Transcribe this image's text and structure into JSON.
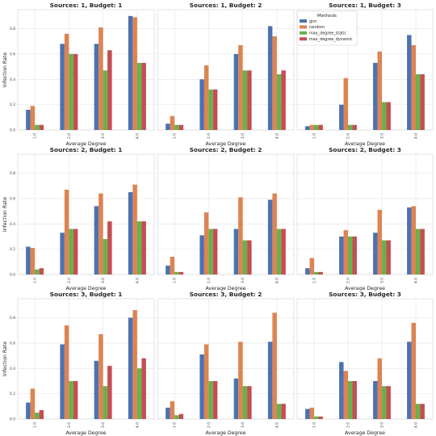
{
  "figure": {
    "legend": {
      "title": "Methods",
      "placement": "top-left of third panel"
    }
  },
  "chart_data": {
    "type": "bar",
    "grid": true,
    "categories": [
      "1.0",
      "2.0",
      "3.0",
      "4.0"
    ],
    "series_meta": [
      {
        "name": "gnn",
        "color": "#4c72b0"
      },
      {
        "name": "random",
        "color": "#dd8452"
      },
      {
        "name": "max_degree_static",
        "color": "#6ab04c"
      },
      {
        "name": "max_degree_dynamic",
        "color": "#c44e52"
      }
    ],
    "ylim": [
      0,
      0.95
    ],
    "y_ticks": [
      0.0,
      0.2,
      0.4,
      0.6,
      0.8
    ],
    "panels": [
      {
        "title": "Sources: 1, Budget: 1",
        "xlabel": "Average Degree",
        "ylabel": "Infection Rate",
        "y_tick_labels": [
          "0.0",
          "0.2",
          "0.4",
          "0.6",
          "0.8"
        ],
        "series": [
          {
            "name": "gnn",
            "values": [
              0.16,
              0.68,
              0.68,
              0.9
            ]
          },
          {
            "name": "random",
            "values": [
              0.19,
              0.76,
              0.81,
              0.89
            ]
          },
          {
            "name": "max_degree_static",
            "values": [
              0.04,
              0.6,
              0.47,
              0.53
            ]
          },
          {
            "name": "max_degree_dynamic",
            "values": [
              0.04,
              0.6,
              0.63,
              0.53
            ]
          }
        ]
      },
      {
        "title": "Sources: 1, Budget: 2",
        "xlabel": "Average Degree",
        "ylabel": "",
        "y_tick_labels": [],
        "series": [
          {
            "name": "gnn",
            "values": [
              0.05,
              0.4,
              0.6,
              0.82
            ]
          },
          {
            "name": "random",
            "values": [
              0.11,
              0.51,
              0.67,
              0.74
            ]
          },
          {
            "name": "max_degree_static",
            "values": [
              0.04,
              0.32,
              0.47,
              0.44
            ]
          },
          {
            "name": "max_degree_dynamic",
            "values": [
              0.04,
              0.32,
              0.47,
              0.47
            ]
          }
        ]
      },
      {
        "title": "Sources: 1, Budget: 3",
        "xlabel": "Average Degree",
        "ylabel": "",
        "y_tick_labels": [],
        "series": [
          {
            "name": "gnn",
            "values": [
              0.03,
              0.2,
              0.53,
              0.75
            ]
          },
          {
            "name": "random",
            "values": [
              0.04,
              0.41,
              0.62,
              0.67
            ]
          },
          {
            "name": "max_degree_static",
            "values": [
              0.04,
              0.04,
              0.22,
              0.44
            ]
          },
          {
            "name": "max_degree_dynamic",
            "values": [
              0.04,
              0.04,
              0.22,
              0.44
            ]
          }
        ]
      },
      {
        "title": "Sources: 2, Budget: 1",
        "xlabel": "Average Degree",
        "ylabel": "Infection Rate",
        "y_tick_labels": [
          "0.0",
          "0.2",
          "0.4",
          "0.6",
          "0.8"
        ],
        "series": [
          {
            "name": "gnn",
            "values": [
              0.22,
              0.33,
              0.54,
              0.65
            ]
          },
          {
            "name": "random",
            "values": [
              0.21,
              0.67,
              0.64,
              0.71
            ]
          },
          {
            "name": "max_degree_static",
            "values": [
              0.04,
              0.36,
              0.28,
              0.42
            ]
          },
          {
            "name": "max_degree_dynamic",
            "values": [
              0.05,
              0.36,
              0.42,
              0.42
            ]
          }
        ]
      },
      {
        "title": "Sources: 2, Budget: 2",
        "xlabel": "Average Degree",
        "ylabel": "",
        "y_tick_labels": [],
        "series": [
          {
            "name": "gnn",
            "values": [
              0.07,
              0.31,
              0.36,
              0.59
            ]
          },
          {
            "name": "random",
            "values": [
              0.14,
              0.49,
              0.61,
              0.64
            ]
          },
          {
            "name": "max_degree_static",
            "values": [
              0.02,
              0.36,
              0.27,
              0.36
            ]
          },
          {
            "name": "max_degree_dynamic",
            "values": [
              0.02,
              0.36,
              0.27,
              0.36
            ]
          }
        ]
      },
      {
        "title": "Sources: 2, Budget: 3",
        "xlabel": "Average Degree",
        "ylabel": "",
        "y_tick_labels": [],
        "series": [
          {
            "name": "gnn",
            "values": [
              0.05,
              0.3,
              0.33,
              0.53
            ]
          },
          {
            "name": "random",
            "values": [
              0.13,
              0.35,
              0.51,
              0.54
            ]
          },
          {
            "name": "max_degree_static",
            "values": [
              0.02,
              0.3,
              0.27,
              0.36
            ]
          },
          {
            "name": "max_degree_dynamic",
            "values": [
              0.02,
              0.3,
              0.27,
              0.36
            ]
          }
        ]
      },
      {
        "title": "Sources: 3, Budget: 1",
        "xlabel": "Average Degree",
        "ylabel": "Infection Rate",
        "y_tick_labels": [
          "0.0",
          "0.2",
          "0.4",
          "0.6",
          "0.8"
        ],
        "series": [
          {
            "name": "gnn",
            "values": [
              0.13,
              0.59,
              0.46,
              0.8
            ]
          },
          {
            "name": "random",
            "values": [
              0.24,
              0.74,
              0.67,
              0.86
            ]
          },
          {
            "name": "max_degree_static",
            "values": [
              0.05,
              0.3,
              0.26,
              0.4
            ]
          },
          {
            "name": "max_degree_dynamic",
            "values": [
              0.07,
              0.3,
              0.42,
              0.48
            ]
          }
        ]
      },
      {
        "title": "Sources: 3, Budget: 2",
        "xlabel": "Average Degree",
        "ylabel": "",
        "y_tick_labels": [],
        "series": [
          {
            "name": "gnn",
            "values": [
              0.09,
              0.51,
              0.32,
              0.61
            ]
          },
          {
            "name": "random",
            "values": [
              0.14,
              0.59,
              0.61,
              0.84
            ]
          },
          {
            "name": "max_degree_static",
            "values": [
              0.03,
              0.3,
              0.26,
              0.12
            ]
          },
          {
            "name": "max_degree_dynamic",
            "values": [
              0.04,
              0.3,
              0.26,
              0.12
            ]
          }
        ]
      },
      {
        "title": "Sources: 3, Budget: 3",
        "xlabel": "Average Degree",
        "ylabel": "",
        "y_tick_labels": [],
        "series": [
          {
            "name": "gnn",
            "values": [
              0.08,
              0.45,
              0.3,
              0.61
            ]
          },
          {
            "name": "random",
            "values": [
              0.09,
              0.38,
              0.48,
              0.76
            ]
          },
          {
            "name": "max_degree_static",
            "values": [
              0.02,
              0.3,
              0.26,
              0.12
            ]
          },
          {
            "name": "max_degree_dynamic",
            "values": [
              0.02,
              0.3,
              0.26,
              0.12
            ]
          }
        ]
      }
    ]
  }
}
